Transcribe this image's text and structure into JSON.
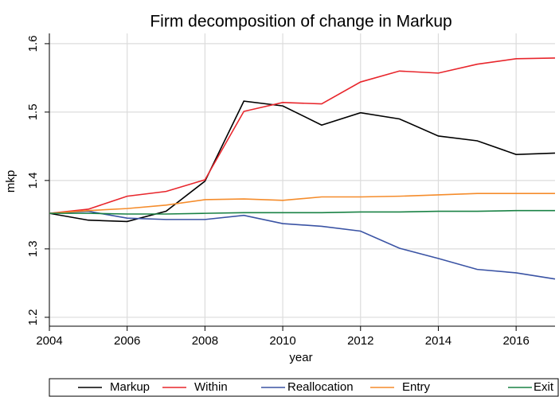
{
  "chart_data": {
    "type": "line",
    "title": "Firm decomposition of change in Markup",
    "x_label": "year",
    "y_label": "mkp",
    "x": [
      2004,
      2005,
      2006,
      2007,
      2008,
      2009,
      2010,
      2011,
      2012,
      2013,
      2014,
      2015,
      2016,
      2017
    ],
    "xlim": [
      2004,
      2017
    ],
    "xticks": [
      2004,
      2006,
      2008,
      2010,
      2012,
      2014,
      2016
    ],
    "ylim": [
      1.187,
      1.615
    ],
    "yticks": [
      1.2,
      1.3,
      1.4,
      1.5,
      1.6
    ],
    "grid": true,
    "legend": "bottom",
    "series": [
      {
        "name": "Markup",
        "color": "#000000",
        "values": [
          1.352,
          1.342,
          1.34,
          1.355,
          1.399,
          1.516,
          1.509,
          1.481,
          1.499,
          1.49,
          1.465,
          1.458,
          1.438,
          1.44
        ]
      },
      {
        "name": "Within",
        "color": "#e8262c",
        "values": [
          1.352,
          1.358,
          1.377,
          1.384,
          1.401,
          1.501,
          1.514,
          1.512,
          1.544,
          1.56,
          1.557,
          1.57,
          1.578,
          1.579
        ]
      },
      {
        "name": "Reallocation",
        "color": "#3a53a4",
        "values": [
          1.352,
          1.355,
          1.345,
          1.343,
          1.343,
          1.349,
          1.337,
          1.333,
          1.326,
          1.301,
          1.286,
          1.27,
          1.265,
          1.256
        ]
      },
      {
        "name": "Entry",
        "color": "#f58c2b",
        "values": [
          1.352,
          1.356,
          1.359,
          1.364,
          1.372,
          1.373,
          1.371,
          1.376,
          1.376,
          1.377,
          1.379,
          1.381,
          1.381,
          1.381
        ]
      },
      {
        "name": "Exit",
        "color": "#1a8245",
        "values": [
          1.352,
          1.352,
          1.351,
          1.351,
          1.352,
          1.353,
          1.353,
          1.353,
          1.354,
          1.354,
          1.355,
          1.355,
          1.356,
          1.356
        ]
      }
    ]
  }
}
